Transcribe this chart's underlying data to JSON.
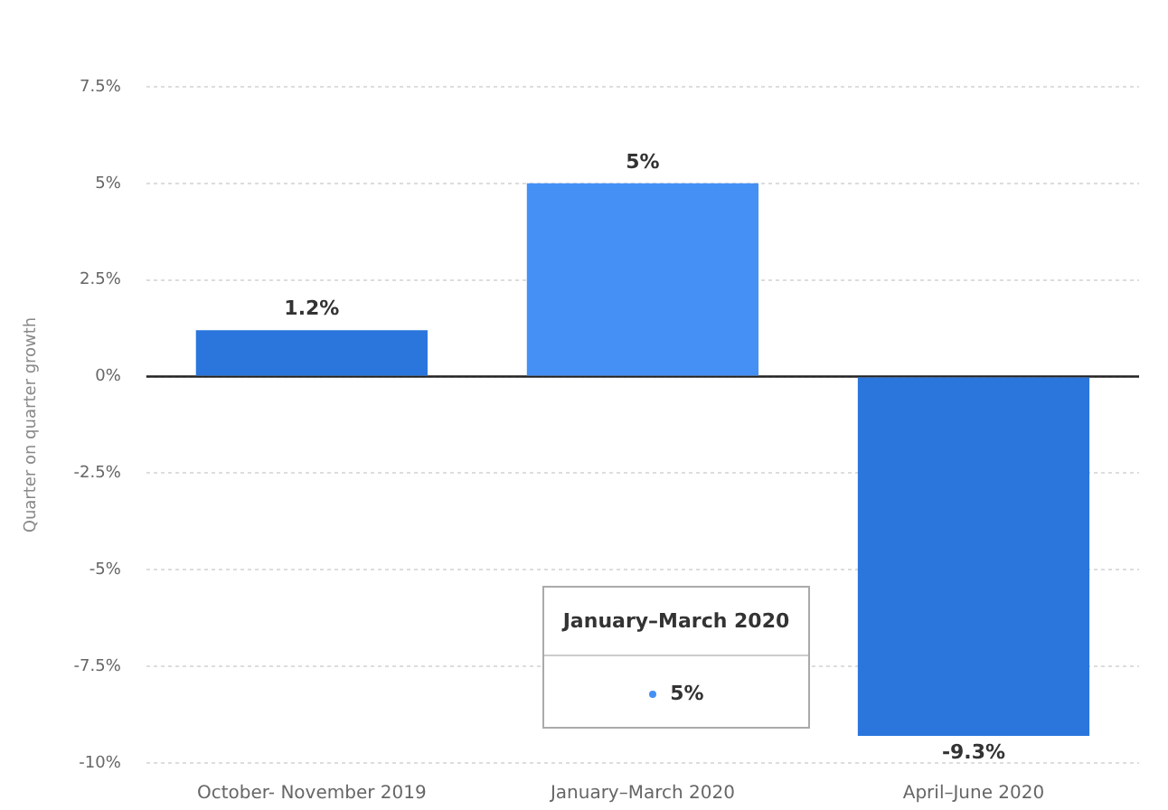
{
  "chart_data": {
    "type": "bar",
    "ylabel": "Quarter on quarter growth",
    "categories": [
      "October- November 2019",
      "January–March 2020",
      "April–June 2020"
    ],
    "values": [
      1.2,
      5,
      -9.3
    ],
    "colors": [
      "#2a76dd",
      "#4590f5",
      "#2a76dd"
    ],
    "value_labels": [
      "1.2%",
      "5%",
      "-9.3%"
    ],
    "ylim": [
      -10,
      7.5
    ],
    "yticks": [
      {
        "value": -10,
        "label": "-10%"
      },
      {
        "value": -7.5,
        "label": "-7.5%"
      },
      {
        "value": -5,
        "label": "-5%"
      },
      {
        "value": -2.5,
        "label": "-2.5%"
      },
      {
        "value": 0,
        "label": "0%"
      },
      {
        "value": 2.5,
        "label": "2.5%"
      },
      {
        "value": 5,
        "label": "5%"
      },
      {
        "value": 7.5,
        "label": "7.5%"
      }
    ],
    "grid": "y",
    "legend": false,
    "ref_lines": [
      {
        "axis": "y",
        "value": 0,
        "color": "#222222"
      }
    ],
    "annotations": [
      "January–March 2020",
      "5%"
    ]
  }
}
